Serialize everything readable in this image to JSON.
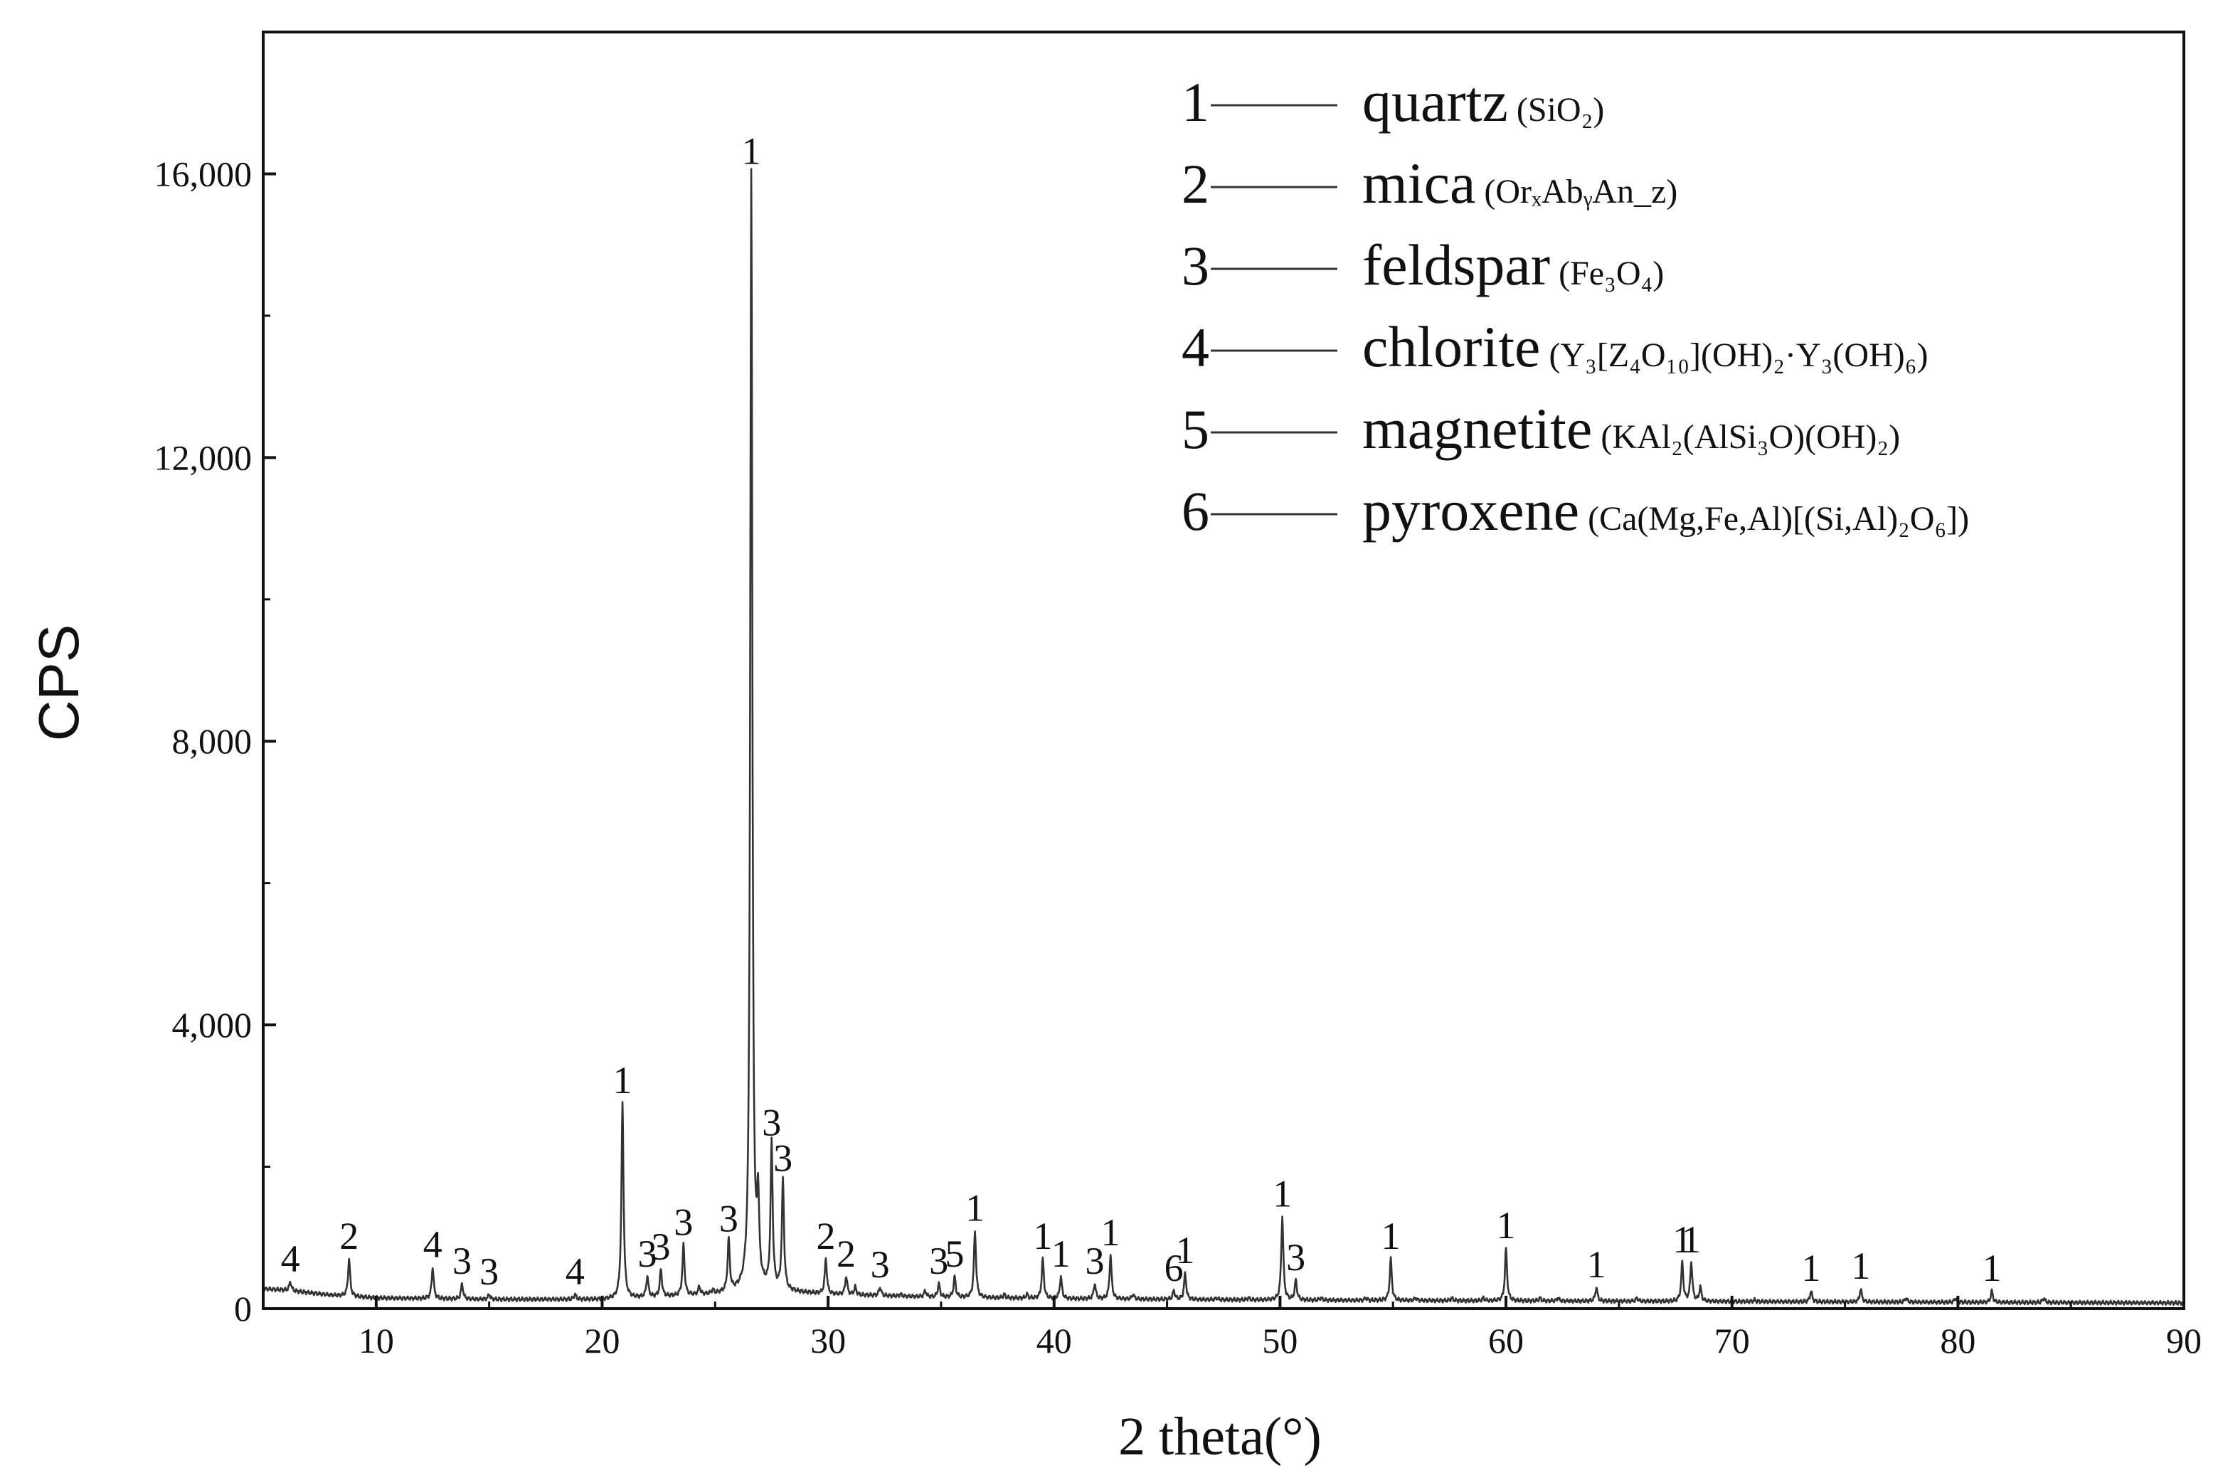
{
  "chart_data": {
    "type": "line",
    "title": "",
    "xlabel": "2 theta(°)",
    "ylabel": "CPS",
    "xlim": [
      5,
      90
    ],
    "ylim": [
      0,
      18000
    ],
    "x_ticks": [
      10,
      20,
      30,
      40,
      50,
      60,
      70,
      80,
      90
    ],
    "y_ticks": [
      0,
      4000,
      8000,
      12000,
      16000
    ],
    "x_tick_labels": [
      "10",
      "20",
      "30",
      "40",
      "50",
      "60",
      "70",
      "80",
      "90"
    ],
    "y_tick_labels": [
      "0",
      "4,000",
      "8,000",
      "12,000",
      "16,000"
    ],
    "grid": false,
    "legend_position": "top-right",
    "legend": [
      {
        "num": "1",
        "name": "quartz",
        "formula": "(SiO₂)"
      },
      {
        "num": "2",
        "name": "mica",
        "formula": "(OrₓAbᵧAn_z)"
      },
      {
        "num": "3",
        "name": "feldspar",
        "formula": "(Fe₃O₄)"
      },
      {
        "num": "4",
        "name": "chlorite",
        "formula": "(Y₃[Z₄O₁₀](OH)₂·Y₃(OH)₆)"
      },
      {
        "num": "5",
        "name": "magnetite",
        "formula": "(KAl₂(AlSi₃O)(OH)₂)"
      },
      {
        "num": "6",
        "name": "pyroxene",
        "formula": "(Ca(Mg,Fe,Al)[(Si,Al)₂O₆])"
      }
    ],
    "background": [
      [
        5,
        280
      ],
      [
        6,
        260
      ],
      [
        8,
        190
      ],
      [
        10,
        150
      ],
      [
        15,
        130
      ],
      [
        20,
        130
      ],
      [
        25,
        200
      ],
      [
        27,
        260
      ],
      [
        30,
        200
      ],
      [
        35,
        160
      ],
      [
        40,
        140
      ],
      [
        50,
        120
      ],
      [
        60,
        110
      ],
      [
        70,
        100
      ],
      [
        80,
        90
      ],
      [
        90,
        80
      ]
    ],
    "peaks": [
      {
        "x": 6.2,
        "y": 380,
        "label": "4"
      },
      {
        "x": 8.8,
        "y": 700,
        "label": "2"
      },
      {
        "x": 12.5,
        "y": 580,
        "label": "4"
      },
      {
        "x": 13.8,
        "y": 350,
        "label": "3"
      },
      {
        "x": 15.0,
        "y": 200,
        "label": "3"
      },
      {
        "x": 18.8,
        "y": 200,
        "label": "4"
      },
      {
        "x": 20.9,
        "y": 2900,
        "label": "1"
      },
      {
        "x": 22.0,
        "y": 450,
        "label": "3"
      },
      {
        "x": 22.6,
        "y": 550,
        "label": "3"
      },
      {
        "x": 23.6,
        "y": 900,
        "label": "3"
      },
      {
        "x": 25.6,
        "y": 950,
        "label": "3"
      },
      {
        "x": 26.6,
        "y": 16000,
        "label": "1"
      },
      {
        "x": 27.5,
        "y": 2300,
        "label": "3"
      },
      {
        "x": 28.0,
        "y": 1800,
        "label": "3"
      },
      {
        "x": 29.9,
        "y": 700,
        "label": "2"
      },
      {
        "x": 30.8,
        "y": 450,
        "label": "2"
      },
      {
        "x": 32.3,
        "y": 300,
        "label": "3"
      },
      {
        "x": 34.9,
        "y": 350,
        "label": "3"
      },
      {
        "x": 35.6,
        "y": 450,
        "label": "5"
      },
      {
        "x": 36.5,
        "y": 1100,
        "label": "1"
      },
      {
        "x": 39.5,
        "y": 700,
        "label": "1"
      },
      {
        "x": 40.3,
        "y": 450,
        "label": "1"
      },
      {
        "x": 41.8,
        "y": 350,
        "label": "3"
      },
      {
        "x": 42.5,
        "y": 750,
        "label": "1"
      },
      {
        "x": 45.3,
        "y": 250,
        "label": "6"
      },
      {
        "x": 45.8,
        "y": 500,
        "label": "1"
      },
      {
        "x": 50.1,
        "y": 1300,
        "label": "1"
      },
      {
        "x": 50.7,
        "y": 400,
        "label": "3"
      },
      {
        "x": 54.9,
        "y": 700,
        "label": "1"
      },
      {
        "x": 60.0,
        "y": 850,
        "label": "1"
      },
      {
        "x": 64.0,
        "y": 300,
        "label": "1"
      },
      {
        "x": 67.8,
        "y": 650,
        "label": "1"
      },
      {
        "x": 68.2,
        "y": 650,
        "label": "1"
      },
      {
        "x": 73.5,
        "y": 250,
        "label": "1"
      },
      {
        "x": 75.7,
        "y": 280,
        "label": "1"
      },
      {
        "x": 81.5,
        "y": 250,
        "label": "1"
      }
    ],
    "minor_peaks": [
      [
        24.3,
        300
      ],
      [
        24.9,
        250
      ],
      [
        26.9,
        1400
      ],
      [
        31.2,
        300
      ],
      [
        33.2,
        200
      ],
      [
        34.3,
        250
      ],
      [
        37.8,
        200
      ],
      [
        38.8,
        200
      ],
      [
        43.5,
        200
      ],
      [
        47.2,
        150
      ],
      [
        48.6,
        150
      ],
      [
        51.8,
        150
      ],
      [
        53.8,
        150
      ],
      [
        56.0,
        150
      ],
      [
        57.6,
        150
      ],
      [
        59.0,
        150
      ],
      [
        61.5,
        150
      ],
      [
        62.3,
        150
      ],
      [
        65.8,
        150
      ],
      [
        68.6,
        300
      ],
      [
        71.0,
        120
      ],
      [
        77.7,
        150
      ],
      [
        79.9,
        150
      ],
      [
        83.8,
        150
      ]
    ]
  }
}
